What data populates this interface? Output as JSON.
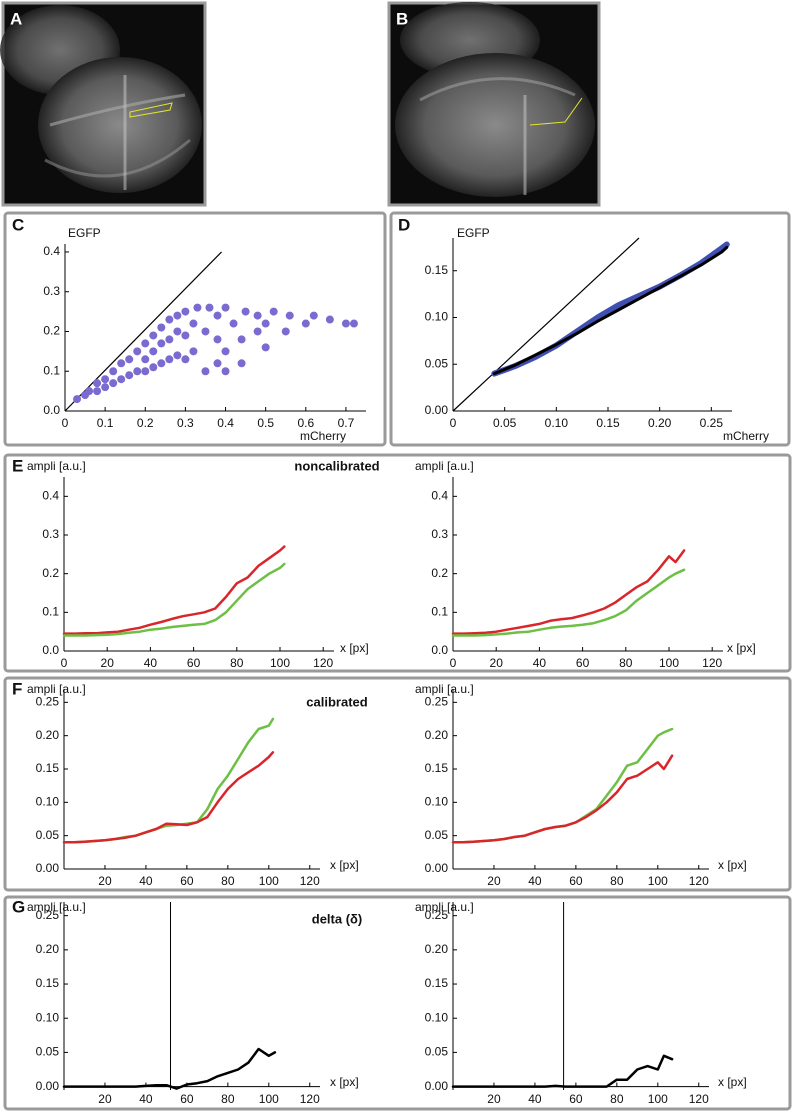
{
  "images": [
    {
      "label": "A"
    },
    {
      "label": "B"
    }
  ],
  "chart_data": [
    {
      "type": "scatter",
      "panel": "C",
      "ylabel": "EGFP",
      "xlabel": "mCherry",
      "color": "#7a6bd0",
      "xlim": [
        0,
        0.75
      ],
      "ylim": [
        0,
        0.42
      ],
      "xticks": [
        0,
        0.1,
        0.2,
        0.3,
        0.4,
        0.5,
        0.6,
        0.7
      ],
      "yticks": [
        {
          "value": 0,
          "label": "0.0"
        },
        0.1,
        0.2,
        0.3,
        0.4
      ],
      "reference_line": {
        "x": [
          0,
          0.39
        ],
        "values": [
          0,
          0.4
        ]
      },
      "x": [
        0.03,
        0.05,
        0.06,
        0.08,
        0.08,
        0.1,
        0.1,
        0.12,
        0.12,
        0.14,
        0.14,
        0.16,
        0.16,
        0.18,
        0.18,
        0.2,
        0.2,
        0.2,
        0.22,
        0.22,
        0.22,
        0.24,
        0.24,
        0.24,
        0.26,
        0.26,
        0.26,
        0.28,
        0.28,
        0.28,
        0.3,
        0.3,
        0.3,
        0.32,
        0.32,
        0.33,
        0.35,
        0.35,
        0.36,
        0.38,
        0.38,
        0.38,
        0.4,
        0.4,
        0.4,
        0.42,
        0.44,
        0.44,
        0.45,
        0.48,
        0.48,
        0.5,
        0.5,
        0.52,
        0.55,
        0.56,
        0.6,
        0.62,
        0.66,
        0.7,
        0.72
      ],
      "values": [
        0.03,
        0.04,
        0.05,
        0.05,
        0.07,
        0.06,
        0.08,
        0.07,
        0.1,
        0.08,
        0.12,
        0.09,
        0.13,
        0.1,
        0.15,
        0.1,
        0.13,
        0.17,
        0.11,
        0.15,
        0.19,
        0.12,
        0.17,
        0.21,
        0.13,
        0.18,
        0.23,
        0.14,
        0.2,
        0.24,
        0.13,
        0.19,
        0.25,
        0.15,
        0.22,
        0.26,
        0.1,
        0.2,
        0.26,
        0.12,
        0.18,
        0.24,
        0.1,
        0.15,
        0.26,
        0.22,
        0.12,
        0.18,
        0.25,
        0.2,
        0.24,
        0.16,
        0.22,
        0.25,
        0.2,
        0.24,
        0.22,
        0.24,
        0.23,
        0.22,
        0.22
      ]
    },
    {
      "type": "line",
      "panel": "D",
      "ylabel": "EGFP",
      "xlabel": "mCherry",
      "xlim": [
        0,
        0.27
      ],
      "ylim": [
        0,
        0.185
      ],
      "xticks": [
        0,
        0.05,
        {
          "value": 0.1,
          "label": "0.10"
        },
        0.15,
        {
          "value": 0.2,
          "label": "0.20"
        },
        0.25
      ],
      "yticks": [
        {
          "value": 0,
          "label": "0.00"
        },
        0.05,
        {
          "value": 0.1,
          "label": "0.10"
        },
        0.15
      ],
      "reference_line": {
        "x": [
          0,
          0.18
        ],
        "values": [
          0,
          0.185
        ]
      },
      "x": [
        0.04,
        0.06,
        0.08,
        0.1,
        0.12,
        0.14,
        0.16,
        0.18,
        0.2,
        0.22,
        0.24,
        0.26,
        0.265
      ],
      "series": [
        {
          "color": "#4050b0",
          "values": [
            0.04,
            0.048,
            0.058,
            0.07,
            0.085,
            0.1,
            0.113,
            0.123,
            0.133,
            0.145,
            0.158,
            0.174,
            0.178
          ]
        },
        {
          "color": "#000000",
          "values": [
            0.04,
            0.049,
            0.06,
            0.071,
            0.083,
            0.096,
            0.108,
            0.12,
            0.132,
            0.144,
            0.156,
            0.17,
            0.175
          ]
        }
      ]
    },
    {
      "type": "line",
      "panel": "E",
      "title": "noncalibrated",
      "ylabel": "ampli [a.u.]",
      "xlabel": "x [px]",
      "xlim": [
        0,
        125
      ],
      "ylim": [
        0,
        0.45
      ],
      "xticks": [
        0,
        20,
        40,
        60,
        80,
        100,
        120
      ],
      "yticks": [
        {
          "value": 0,
          "label": "0.0"
        },
        0.1,
        0.2,
        0.3,
        0.4
      ],
      "x": [
        0,
        5,
        10,
        15,
        20,
        25,
        30,
        35,
        40,
        45,
        50,
        55,
        60,
        65,
        70,
        75,
        80,
        85,
        90,
        95,
        100,
        102
      ],
      "series": [
        {
          "color": "#d9262b",
          "values": [
            0.045,
            0.045,
            0.046,
            0.046,
            0.048,
            0.05,
            0.055,
            0.06,
            0.068,
            0.075,
            0.083,
            0.09,
            0.095,
            0.1,
            0.11,
            0.14,
            0.175,
            0.19,
            0.22,
            0.24,
            0.26,
            0.27
          ]
        },
        {
          "color": "#6dbf45",
          "values": [
            0.04,
            0.04,
            0.04,
            0.041,
            0.042,
            0.044,
            0.047,
            0.05,
            0.055,
            0.058,
            0.062,
            0.065,
            0.068,
            0.07,
            0.08,
            0.1,
            0.13,
            0.16,
            0.18,
            0.2,
            0.215,
            0.225
          ]
        }
      ]
    },
    {
      "type": "line",
      "ylabel": "ampli [a.u.]",
      "xlabel": "x [px]",
      "xlim": [
        0,
        125
      ],
      "ylim": [
        0,
        0.45
      ],
      "xticks": [
        0,
        20,
        40,
        60,
        80,
        100,
        120
      ],
      "yticks": [
        {
          "value": 0,
          "label": "0.0"
        },
        0.1,
        0.2,
        0.3,
        0.4
      ],
      "x": [
        0,
        5,
        10,
        15,
        20,
        25,
        30,
        35,
        40,
        45,
        50,
        55,
        60,
        65,
        70,
        75,
        80,
        85,
        90,
        95,
        100,
        103,
        107
      ],
      "series": [
        {
          "color": "#d9262b",
          "values": [
            0.045,
            0.045,
            0.046,
            0.047,
            0.05,
            0.055,
            0.06,
            0.065,
            0.07,
            0.078,
            0.082,
            0.085,
            0.092,
            0.1,
            0.11,
            0.125,
            0.145,
            0.165,
            0.18,
            0.21,
            0.245,
            0.23,
            0.26
          ]
        },
        {
          "color": "#6dbf45",
          "values": [
            0.04,
            0.04,
            0.04,
            0.041,
            0.043,
            0.045,
            0.048,
            0.05,
            0.055,
            0.06,
            0.063,
            0.065,
            0.068,
            0.072,
            0.08,
            0.09,
            0.105,
            0.13,
            0.15,
            0.17,
            0.19,
            0.2,
            0.21
          ]
        }
      ]
    },
    {
      "type": "line",
      "panel": "F",
      "title": "calibrated",
      "ylabel": "ampli [a.u.]",
      "xlabel": "x [px]",
      "xlim": [
        0,
        125
      ],
      "ylim": [
        0,
        0.27
      ],
      "xticks": [
        20,
        40,
        60,
        80,
        100,
        120
      ],
      "yticks": [
        {
          "value": 0,
          "label": "0.00"
        },
        0.05,
        {
          "value": 0.1,
          "label": "0.10"
        },
        0.15,
        {
          "value": 0.2,
          "label": "0.20"
        },
        0.25
      ],
      "x": [
        0,
        5,
        10,
        15,
        20,
        25,
        30,
        35,
        40,
        45,
        50,
        55,
        60,
        65,
        70,
        75,
        80,
        85,
        90,
        95,
        100,
        102
      ],
      "series": [
        {
          "color": "#6dbf45",
          "values": [
            0.04,
            0.04,
            0.041,
            0.042,
            0.043,
            0.045,
            0.048,
            0.05,
            0.055,
            0.06,
            0.065,
            0.066,
            0.068,
            0.07,
            0.09,
            0.12,
            0.14,
            0.165,
            0.19,
            0.21,
            0.215,
            0.225
          ]
        },
        {
          "color": "#d9262b",
          "values": [
            0.04,
            0.04,
            0.041,
            0.042,
            0.043,
            0.045,
            0.047,
            0.05,
            0.055,
            0.06,
            0.068,
            0.067,
            0.066,
            0.07,
            0.078,
            0.1,
            0.12,
            0.135,
            0.145,
            0.155,
            0.168,
            0.175
          ]
        }
      ]
    },
    {
      "type": "line",
      "ylabel": "ampli [a.u.]",
      "xlabel": "x [px]",
      "xlim": [
        0,
        125
      ],
      "ylim": [
        0,
        0.27
      ],
      "xticks": [
        20,
        40,
        60,
        80,
        100,
        120
      ],
      "yticks": [
        {
          "value": 0,
          "label": "0.00"
        },
        0.05,
        {
          "value": 0.1,
          "label": "0.10"
        },
        0.15,
        {
          "value": 0.2,
          "label": "0.20"
        },
        0.25
      ],
      "x": [
        0,
        5,
        10,
        15,
        20,
        25,
        30,
        35,
        40,
        45,
        50,
        55,
        60,
        65,
        70,
        75,
        80,
        85,
        90,
        95,
        100,
        103,
        107
      ],
      "series": [
        {
          "color": "#6dbf45",
          "values": [
            0.04,
            0.04,
            0.041,
            0.042,
            0.043,
            0.045,
            0.048,
            0.05,
            0.055,
            0.06,
            0.063,
            0.065,
            0.07,
            0.08,
            0.09,
            0.11,
            0.13,
            0.155,
            0.16,
            0.18,
            0.2,
            0.205,
            0.21
          ]
        },
        {
          "color": "#d9262b",
          "values": [
            0.04,
            0.04,
            0.041,
            0.042,
            0.043,
            0.045,
            0.048,
            0.05,
            0.055,
            0.06,
            0.063,
            0.065,
            0.07,
            0.078,
            0.088,
            0.1,
            0.115,
            0.135,
            0.14,
            0.15,
            0.16,
            0.15,
            0.17
          ]
        }
      ]
    },
    {
      "type": "line",
      "panel": "G",
      "title": "delta (δ)",
      "ylabel": "ampli [a.u.]",
      "xlabel": "x [px]",
      "xlim": [
        0,
        125
      ],
      "ylim": [
        -0.005,
        0.27
      ],
      "marker_x": 52,
      "xticks": [
        20,
        40,
        60,
        80,
        100,
        120
      ],
      "yticks": [
        {
          "value": 0,
          "label": "0.00"
        },
        0.05,
        {
          "value": 0.1,
          "label": "0.10"
        },
        0.15,
        {
          "value": 0.2,
          "label": "0.20"
        },
        0.25
      ],
      "x": [
        0,
        5,
        10,
        15,
        20,
        25,
        30,
        35,
        40,
        45,
        50,
        55,
        60,
        65,
        70,
        75,
        80,
        85,
        90,
        95,
        100,
        103
      ],
      "series": [
        {
          "color": "#000000",
          "values": [
            0,
            0,
            0,
            0,
            0,
            0,
            0,
            0,
            0.001,
            0.002,
            0.002,
            -0.003,
            0.003,
            0.005,
            0.008,
            0.015,
            0.02,
            0.025,
            0.035,
            0.055,
            0.045,
            0.05
          ]
        }
      ]
    },
    {
      "type": "line",
      "ylabel": "ampli [a.u.]",
      "xlabel": "x [px]",
      "xlim": [
        0,
        125
      ],
      "ylim": [
        -0.005,
        0.27
      ],
      "marker_x": 54,
      "xticks": [
        20,
        40,
        60,
        80,
        100,
        120
      ],
      "yticks": [
        {
          "value": 0,
          "label": "0.00"
        },
        0.05,
        {
          "value": 0.1,
          "label": "0.10"
        },
        0.15,
        {
          "value": 0.2,
          "label": "0.20"
        },
        0.25
      ],
      "x": [
        0,
        5,
        10,
        15,
        20,
        25,
        30,
        35,
        40,
        45,
        50,
        55,
        60,
        65,
        70,
        75,
        80,
        85,
        90,
        95,
        100,
        103,
        107
      ],
      "series": [
        {
          "color": "#000000",
          "values": [
            0,
            0,
            0,
            0,
            0,
            0,
            0,
            0,
            0,
            0,
            0.001,
            0,
            0,
            0,
            0,
            0,
            0.01,
            0.01,
            0.025,
            0.03,
            0.025,
            0.045,
            0.04
          ]
        }
      ]
    }
  ]
}
